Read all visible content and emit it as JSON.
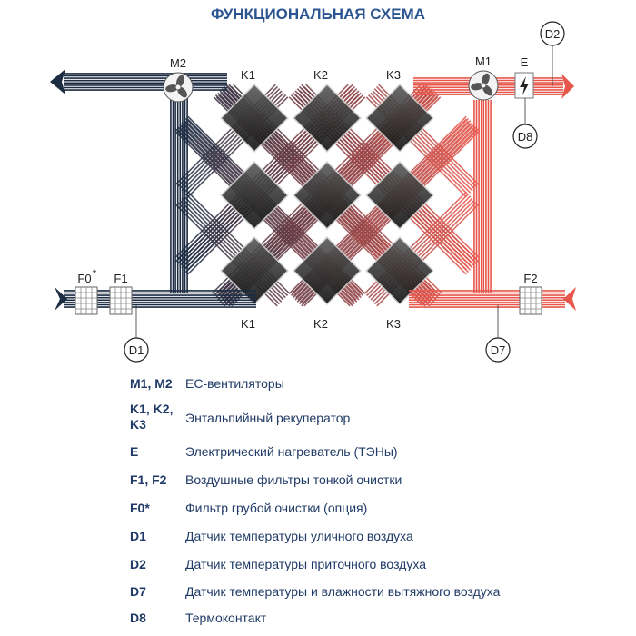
{
  "title": "ФУНКЦИОНАЛЬНАЯ СХЕМА",
  "colors": {
    "exhaust": "#1c2c42",
    "supply": "#e8574c",
    "text": "#1f3a66",
    "title": "#2b5590"
  },
  "diagram": {
    "fans": [
      {
        "label": "M2",
        "icon": "fan-icon"
      },
      {
        "label": "M1",
        "icon": "fan-icon"
      }
    ],
    "heater": {
      "label": "E",
      "icon": "lightning-icon"
    },
    "recuperators_top": [
      "K1",
      "K2",
      "K3"
    ],
    "recuperators_bottom": [
      "K1",
      "K2",
      "K3"
    ],
    "filters": [
      "F0",
      "F1",
      "F2"
    ],
    "filter_f0_mark": "*",
    "sensors": [
      "D1",
      "D2",
      "D7",
      "D8"
    ]
  },
  "legend": [
    {
      "key": "M1, M2",
      "desc": "ЕС-вентиляторы"
    },
    {
      "key": "K1, K2, K3",
      "desc": "Энтальпийный рекуператор"
    },
    {
      "key": "E",
      "desc": "Электрический нагреватель (ТЭНы)"
    },
    {
      "key": "F1, F2",
      "desc": "Воздушные фильтры тонкой очистки"
    },
    {
      "key": "F0*",
      "desc": "Фильтр грубой очистки (опция)"
    },
    {
      "key": "D1",
      "desc": "Датчик температуры уличного воздуха"
    },
    {
      "key": "D2",
      "desc": "Датчик температуры приточного воздуха"
    },
    {
      "key": "D7",
      "desc": "Датчик температуры и влажности вытяжного воздуха"
    },
    {
      "key": "D8",
      "desc": "Термоконтакт"
    }
  ]
}
